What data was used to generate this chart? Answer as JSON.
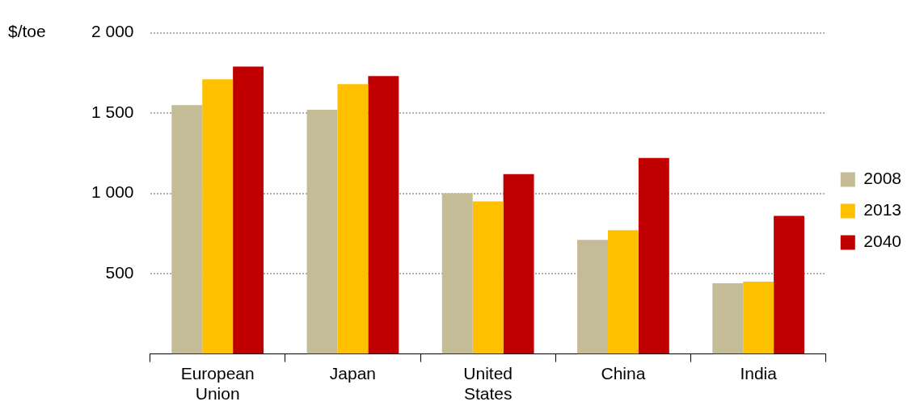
{
  "chart_data": {
    "type": "bar",
    "ylabel": "$/toe",
    "categories": [
      "European Union",
      "Japan",
      "United States",
      "China",
      "India"
    ],
    "series": [
      {
        "name": "2008",
        "color": "#c4bc96",
        "values": [
          1550,
          1520,
          1000,
          710,
          440
        ]
      },
      {
        "name": "2013",
        "color": "#ffc000",
        "values": [
          1710,
          1680,
          950,
          770,
          450
        ]
      },
      {
        "name": "2040",
        "color": "#c00000",
        "values": [
          1790,
          1730,
          1120,
          1220,
          860
        ]
      }
    ],
    "ylim": [
      0,
      2000
    ],
    "yticks": [
      500,
      {
        "value": 1000,
        "label": "1 000"
      },
      {
        "value": 1500,
        "label": "1 500"
      },
      {
        "value": 2000,
        "label": "2 000"
      }
    ],
    "grid": "y",
    "legend": "right"
  }
}
